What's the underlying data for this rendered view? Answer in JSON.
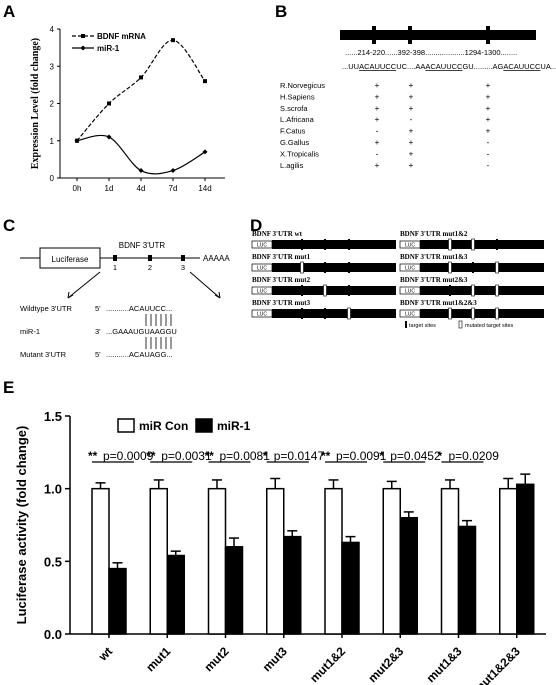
{
  "panels": {
    "a": "A",
    "b": "B",
    "c": "C",
    "d": "D",
    "e": "E"
  },
  "chart_data": [
    {
      "type": "line",
      "ylabel": "Expression Level (fold change)",
      "categories": [
        "0h",
        "1d",
        "4d",
        "7d",
        "14d"
      ],
      "ylim": [
        0,
        4
      ],
      "yticks": [
        "0",
        "1",
        "2",
        "3",
        "4"
      ],
      "series": [
        {
          "name": "BDNF mRNA",
          "values": [
            1.0,
            2.0,
            2.7,
            3.7,
            2.6
          ],
          "style": "dashed",
          "marker": "square"
        },
        {
          "name": "miR-1",
          "values": [
            1.0,
            1.1,
            0.2,
            0.2,
            0.7
          ],
          "style": "solid",
          "marker": "diamond"
        }
      ],
      "legend": "top-left"
    },
    {
      "type": "bar",
      "ylabel": "Luciferase activity (fold change)",
      "categories": [
        "wt",
        "mut1",
        "mut2",
        "mut3",
        "mut1&2",
        "mut2&3",
        "mut1&3",
        "mut1&2&3"
      ],
      "ylim": [
        0,
        1.5
      ],
      "yticks": [
        "0.0",
        "0.5",
        "1.0",
        "1.5"
      ],
      "series": [
        {
          "name": "miR Con",
          "values": [
            1.0,
            1.0,
            1.0,
            1.0,
            1.0,
            1.0,
            1.0,
            1.0
          ],
          "errors": [
            0.04,
            0.06,
            0.06,
            0.07,
            0.06,
            0.05,
            0.06,
            0.07
          ],
          "color": "#ffffff"
        },
        {
          "name": "miR-1",
          "values": [
            0.45,
            0.54,
            0.6,
            0.67,
            0.63,
            0.8,
            0.74,
            1.03
          ],
          "errors": [
            0.04,
            0.03,
            0.06,
            0.04,
            0.04,
            0.04,
            0.04,
            0.07
          ],
          "color": "#000000"
        }
      ],
      "annotations": [
        {
          "stars": "**",
          "p": "p=0.0009"
        },
        {
          "stars": "**",
          "p": "p=0.0031"
        },
        {
          "stars": "**",
          "p": "p=0.0081"
        },
        {
          "stars": "*",
          "p": "p=0.0147"
        },
        {
          "stars": "**",
          "p": "p=0.0091"
        },
        {
          "stars": "*",
          "p": "p=0.0452"
        },
        {
          "stars": "*",
          "p": "p=0.0209"
        },
        {
          "stars": "",
          "p": ""
        }
      ],
      "legend": "top-left"
    }
  ],
  "panel_b": {
    "positions": [
      "......214-220....",
      "..392-398...................",
      "1294-1300........"
    ],
    "seq_parts": [
      "...UU",
      "ACAUUCC",
      "UC....AA",
      "ACAUUCC",
      "GU.........AG",
      "ACAUUCC",
      "UA..."
    ],
    "species": [
      {
        "name": "R.Norvegicus",
        "marks": [
          "+",
          "+",
          "+"
        ]
      },
      {
        "name": "H.Sapiens",
        "marks": [
          "+",
          "+",
          "+"
        ]
      },
      {
        "name": "S.scrofa",
        "marks": [
          "+",
          "+",
          "+"
        ]
      },
      {
        "name": "L.Africana",
        "marks": [
          "+",
          "-",
          "+"
        ]
      },
      {
        "name": "F.Catus",
        "marks": [
          "-",
          "+",
          "+"
        ]
      },
      {
        "name": "G.Gallus",
        "marks": [
          "+",
          "+",
          "-"
        ]
      },
      {
        "name": "X.Tropicalis",
        "marks": [
          "-",
          "+",
          "-"
        ]
      },
      {
        "name": "L.agilis",
        "marks": [
          "+",
          "+",
          "-"
        ]
      }
    ]
  },
  "panel_c": {
    "luciferase": "Luciferase",
    "utr": "BDNF 3'UTR",
    "polya": "AAAAA",
    "sites": [
      "1",
      "2",
      "3"
    ],
    "rows": [
      {
        "label": "Wildtype 3'UTR",
        "prefix": "5'",
        "seq": "...........ACAUUCC..."
      },
      {
        "label": "miR-1",
        "prefix": "3'",
        "seq": "...GAAAUGUAAGGU"
      },
      {
        "label": "Mutant 3'UTR",
        "prefix": "5'",
        "seq": "...........ACAUAGG..."
      }
    ]
  },
  "panel_d": {
    "luc": "LUC",
    "constructs": [
      {
        "title": "BDNF 3'UTR wt",
        "mut": [
          false,
          false,
          false
        ]
      },
      {
        "title": "BDNF 3'UTR mut1",
        "mut": [
          true,
          false,
          false
        ]
      },
      {
        "title": "BDNF 3'UTR mut2",
        "mut": [
          false,
          true,
          false
        ]
      },
      {
        "title": "BDNF 3'UTR mut3",
        "mut": [
          false,
          false,
          true
        ]
      },
      {
        "title": "BDNF 3'UTR mut1&2",
        "mut": [
          true,
          true,
          false
        ]
      },
      {
        "title": "BDNF 3'UTR mut1&3",
        "mut": [
          true,
          false,
          true
        ]
      },
      {
        "title": "BDNF 3'UTR mut2&3",
        "mut": [
          false,
          true,
          true
        ]
      },
      {
        "title": "BDNF 3'UTR mut1&2&3",
        "mut": [
          true,
          true,
          true
        ]
      }
    ],
    "legend": [
      "target sites",
      "mutated target sites"
    ]
  }
}
